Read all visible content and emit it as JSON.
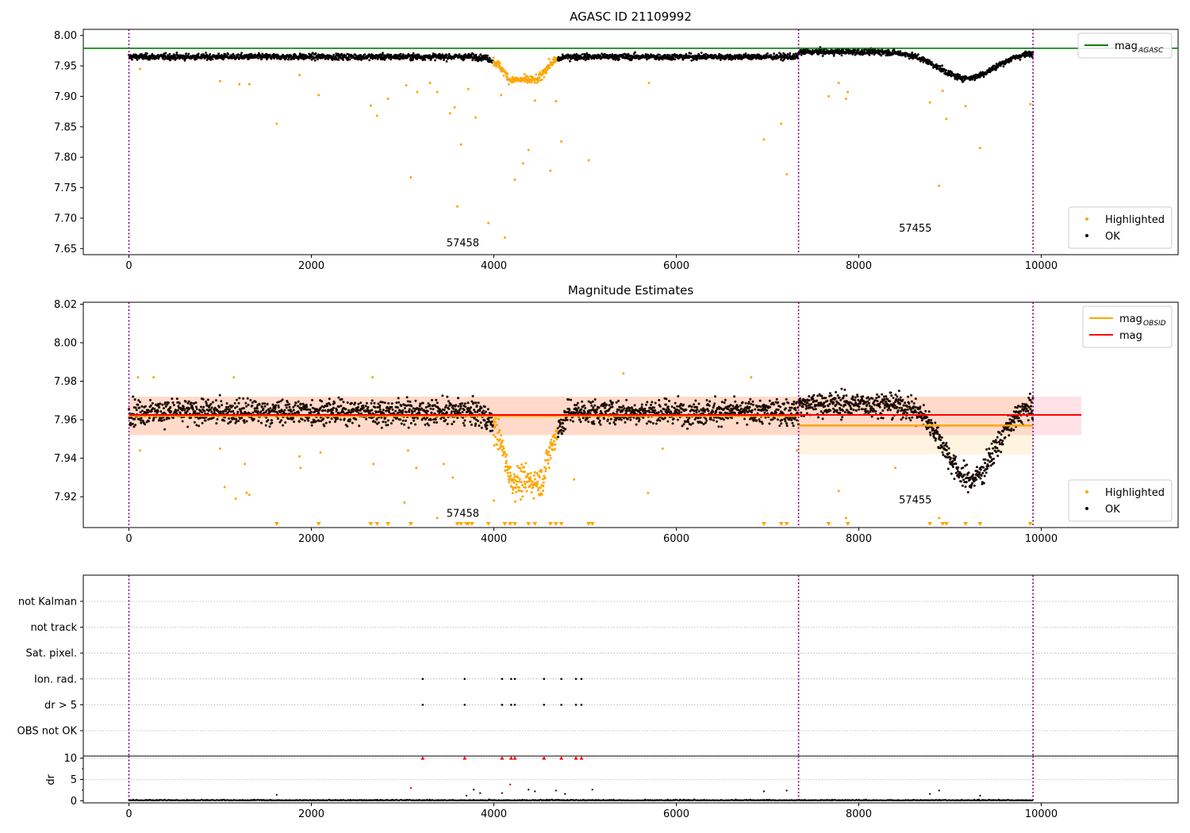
{
  "chart_data": [
    {
      "id": "top",
      "type": "scatter",
      "title": "AGASC ID 21109992",
      "xlim": [
        -500,
        11500
      ],
      "ylim": [
        7.64,
        8.01
      ],
      "xticks": [
        0,
        2000,
        4000,
        6000,
        8000,
        10000
      ],
      "xtick_labels": [
        "0",
        "2000",
        "4000",
        "6000",
        "8000",
        "10000"
      ],
      "yticks": [
        7.65,
        7.7,
        7.75,
        7.8,
        7.85,
        7.9,
        7.95,
        8.0
      ],
      "ytick_labels": [
        "7.65",
        "7.70",
        "7.75",
        "7.80",
        "7.85",
        "7.90",
        "7.95",
        "8.00"
      ],
      "vlines": [
        0,
        7340,
        9910
      ],
      "hlines": [
        {
          "y": 7.979,
          "x0": -500,
          "x1": 11500,
          "color": "#008000"
        }
      ],
      "obsid_labels": [
        {
          "text": "57458",
          "x": 3480,
          "y": 7.654
        },
        {
          "text": "57455",
          "x": 8440,
          "y": 7.678
        }
      ],
      "series": [
        {
          "name": "OK",
          "color": "#000000",
          "model": "top_ok"
        },
        {
          "name": "Highlighted",
          "color": "#ffa500",
          "model": "top_hl"
        }
      ],
      "outliers": [
        [
          120,
          7.945
        ],
        [
          1000,
          7.925
        ],
        [
          1210,
          7.92
        ],
        [
          1320,
          7.92
        ],
        [
          1620,
          7.855
        ],
        [
          1870,
          7.935
        ],
        [
          2080,
          7.902
        ],
        [
          2650,
          7.885
        ],
        [
          2720,
          7.868
        ],
        [
          2840,
          7.896
        ],
        [
          3040,
          7.918
        ],
        [
          3090,
          7.767
        ],
        [
          3160,
          7.907
        ],
        [
          3300,
          7.922
        ],
        [
          3380,
          7.907
        ],
        [
          3520,
          7.872
        ],
        [
          3570,
          7.882
        ],
        [
          3600,
          7.719
        ],
        [
          3640,
          7.821
        ],
        [
          3720,
          7.912
        ],
        [
          3800,
          7.865
        ],
        [
          3940,
          7.692
        ],
        [
          4080,
          7.902
        ],
        [
          4120,
          7.668
        ],
        [
          4230,
          7.763
        ],
        [
          4320,
          7.79
        ],
        [
          4380,
          7.812
        ],
        [
          4450,
          7.893
        ],
        [
          4620,
          7.778
        ],
        [
          4680,
          7.892
        ],
        [
          4740,
          7.826
        ],
        [
          5040,
          7.795
        ],
        [
          5700,
          7.922
        ],
        [
          6960,
          7.829
        ],
        [
          7150,
          7.855
        ],
        [
          7210,
          7.772
        ],
        [
          7670,
          7.9
        ],
        [
          7780,
          7.922
        ],
        [
          7860,
          7.896
        ],
        [
          7880,
          7.907
        ],
        [
          8780,
          7.89
        ],
        [
          8880,
          7.753
        ],
        [
          8920,
          7.909
        ],
        [
          8960,
          7.863
        ],
        [
          9170,
          7.884
        ],
        [
          9330,
          7.815
        ],
        [
          9880,
          7.887
        ]
      ],
      "legend": {
        "position": "upper-right",
        "entries": [
          {
            "label": "mag",
            "sub": "AGASC",
            "kind": "line",
            "color": "#008000"
          }
        ]
      },
      "legend2": {
        "position": "lower-right",
        "entries": [
          {
            "label": "Highlighted",
            "kind": "dot",
            "color": "#ffa500"
          },
          {
            "label": "OK",
            "kind": "dot",
            "color": "#000000"
          }
        ]
      }
    },
    {
      "id": "mid",
      "type": "scatter",
      "title": "Magnitude Estimates",
      "xlim": [
        -500,
        11500
      ],
      "ylim": [
        7.904,
        8.021
      ],
      "xticks": [
        0,
        2000,
        4000,
        6000,
        8000,
        10000
      ],
      "xtick_labels": [
        "0",
        "2000",
        "4000",
        "6000",
        "8000",
        "10000"
      ],
      "yticks": [
        7.92,
        7.94,
        7.96,
        7.98,
        8.0,
        8.02
      ],
      "ytick_labels": [
        "7.92",
        "7.94",
        "7.96",
        "7.98",
        "8.00",
        "8.02"
      ],
      "vlines": [
        0,
        7340,
        9910
      ],
      "bands": [
        {
          "x0": 0,
          "x1": 10440,
          "y0": 7.952,
          "y1": 7.972,
          "color": "#ffb6c1",
          "opacity": 0.4
        },
        {
          "x0": 0,
          "x1": 7340,
          "y0": 7.952,
          "y1": 7.972,
          "color": "#ffa500",
          "opacity": 0.12
        },
        {
          "x0": 7340,
          "x1": 9910,
          "y0": 7.942,
          "y1": 7.972,
          "color": "#ffa500",
          "opacity": 0.12
        }
      ],
      "hlines": [
        {
          "y": 7.962,
          "x0": 0,
          "x1": 7340,
          "color": "#ffa500",
          "width": 2.5
        },
        {
          "y": 7.957,
          "x0": 7340,
          "x1": 9910,
          "color": "#ffa500",
          "width": 2.5
        },
        {
          "y": 7.9625,
          "x0": 0,
          "x1": 10440,
          "color": "#ff0000",
          "width": 2
        }
      ],
      "obsid_labels": [
        {
          "text": "57458",
          "x": 3480,
          "y": 7.9095
        },
        {
          "text": "57455",
          "x": 8440,
          "y": 7.9165
        }
      ],
      "series": [
        {
          "name": "OK",
          "color": "#000000",
          "model": "mid_ok"
        },
        {
          "name": "Highlighted",
          "color": "#ffa500",
          "model": "mid_hl"
        }
      ],
      "outliers": [
        [
          100,
          7.982
        ],
        [
          120,
          7.944
        ],
        [
          270,
          7.982
        ],
        [
          1000,
          7.945
        ],
        [
          1050,
          7.925
        ],
        [
          1150,
          7.982
        ],
        [
          1170,
          7.919
        ],
        [
          1270,
          7.937
        ],
        [
          1290,
          7.922
        ],
        [
          1320,
          7.921
        ],
        [
          1870,
          7.941
        ],
        [
          1880,
          7.935
        ],
        [
          2100,
          7.943
        ],
        [
          2670,
          7.982
        ],
        [
          2680,
          7.937
        ],
        [
          3020,
          7.917
        ],
        [
          3060,
          7.944
        ],
        [
          3150,
          7.935
        ],
        [
          3380,
          7.909
        ],
        [
          3450,
          7.937
        ],
        [
          3550,
          7.93
        ],
        [
          4000,
          7.918
        ],
        [
          4880,
          7.929
        ],
        [
          5420,
          7.984
        ],
        [
          5690,
          7.922
        ],
        [
          5850,
          7.945
        ],
        [
          6820,
          7.982
        ],
        [
          7320,
          7.944
        ],
        [
          7780,
          7.923
        ],
        [
          7860,
          7.909
        ],
        [
          8400,
          7.935
        ],
        [
          8880,
          7.909
        ]
      ],
      "markers_below": [
        1620,
        2080,
        2650,
        2720,
        2840,
        3090,
        3600,
        3640,
        3700,
        3720,
        3760,
        3940,
        4120,
        4180,
        4230,
        4380,
        4450,
        4620,
        4680,
        4740,
        5040,
        5080,
        6960,
        7150,
        7210,
        7670,
        7880,
        8780,
        8920,
        8960,
        9170,
        9330,
        9880
      ],
      "legend": {
        "position": "upper-right",
        "entries": [
          {
            "label": "mag",
            "sub": "OBSID",
            "kind": "line",
            "color": "#ffa500"
          },
          {
            "label": "mag",
            "sub": "",
            "kind": "line",
            "color": "#ff0000"
          }
        ]
      },
      "legend2": {
        "position": "lower-right",
        "entries": [
          {
            "label": "Highlighted",
            "kind": "dot",
            "color": "#ffa500"
          },
          {
            "label": "OK",
            "kind": "dot",
            "color": "#000000"
          }
        ]
      }
    },
    {
      "id": "flags",
      "type": "scatter",
      "title": "",
      "xlim": [
        -500,
        11500
      ],
      "categories": [
        "not Kalman",
        "not track",
        "Sat. pixel.",
        "Ion. rad.",
        "dr > 5",
        "OBS not OK"
      ],
      "vlines": [
        0,
        7340,
        9910
      ],
      "points": {
        "Ion. rad.": [
          3220,
          3680,
          4090,
          4190,
          4230,
          4550,
          4740,
          4900,
          4960
        ],
        "dr > 5": [
          3220,
          3680,
          4090,
          4190,
          4230,
          4550,
          4740,
          4900,
          4960
        ]
      }
    },
    {
      "id": "dr",
      "type": "scatter",
      "title": "",
      "ylabel": "dr",
      "xlim": [
        -500,
        11500
      ],
      "xticks": [
        0,
        2000,
        4000,
        6000,
        8000,
        10000
      ],
      "xtick_labels": [
        "0",
        "2000",
        "4000",
        "6000",
        "8000",
        "10000"
      ],
      "ylim": [
        -0.5,
        10.5
      ],
      "yticks": [
        0,
        5,
        10
      ],
      "ytick_labels": [
        "0",
        "5",
        "10"
      ],
      "vlines": [
        0,
        7340,
        9910
      ],
      "capped_points": [
        3220,
        3680,
        4090,
        4190,
        4230,
        4550,
        4740,
        4900,
        4960
      ],
      "red_points": [
        [
          3090,
          3.0
        ],
        [
          4180,
          3.8
        ]
      ],
      "spikes": [
        [
          1620,
          1.4
        ],
        [
          3700,
          1.2
        ],
        [
          3780,
          2.6
        ],
        [
          3850,
          1.8
        ],
        [
          4090,
          1.8
        ],
        [
          4380,
          2.6
        ],
        [
          4450,
          2.2
        ],
        [
          4680,
          2.4
        ],
        [
          4780,
          1.6
        ],
        [
          5080,
          2.6
        ],
        [
          6960,
          2.2
        ],
        [
          7210,
          2.4
        ],
        [
          8780,
          1.6
        ],
        [
          8880,
          2.4
        ],
        [
          9330,
          1.2
        ]
      ]
    }
  ]
}
